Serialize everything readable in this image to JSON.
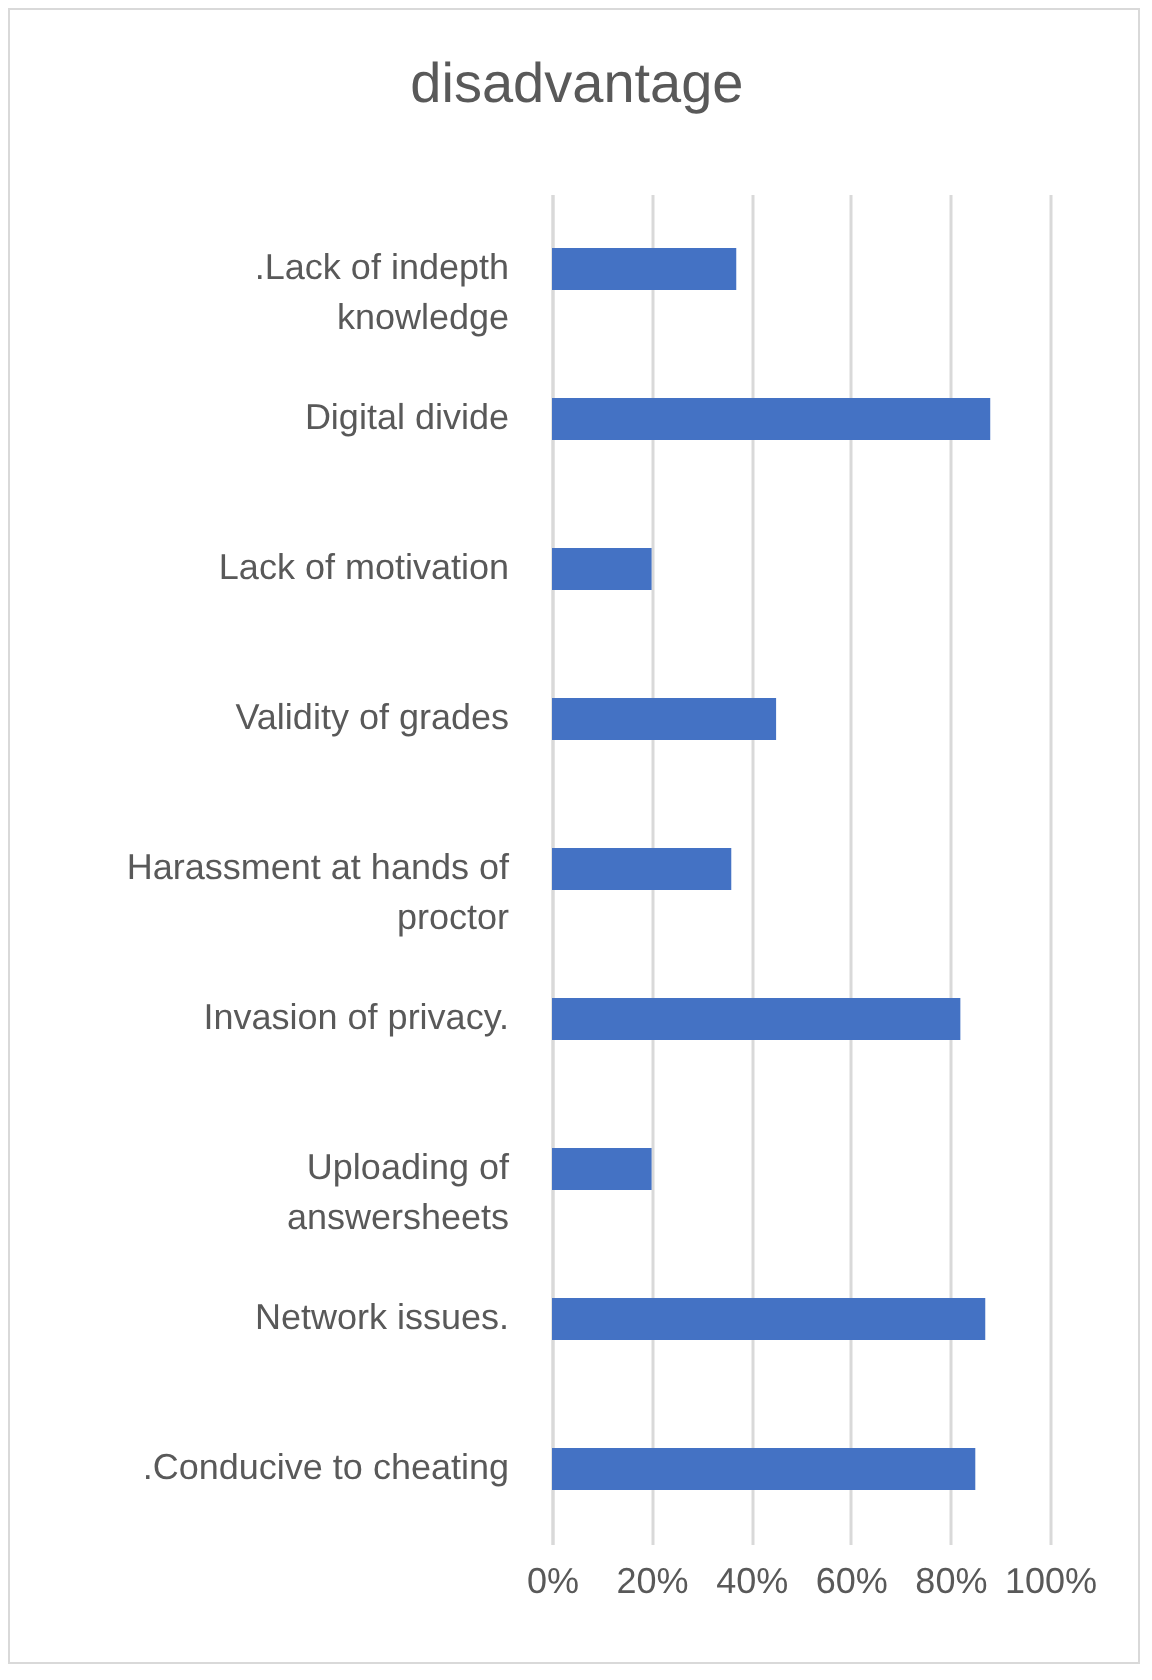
{
  "chart_data": {
    "type": "bar",
    "orientation": "horizontal",
    "title": "disadvantage",
    "categories": [
      ".Lack of indepth knowledge",
      "Digital divide",
      "Lack of motivation",
      "Validity of grades",
      "Harassment at hands of proctor",
      "Invasion of privacy.",
      "Uploading of answersheets",
      "Network issues.",
      ".Conducive to cheating"
    ],
    "values": [
      37,
      88,
      20,
      45,
      36,
      82,
      20,
      87,
      85
    ],
    "color": "#4472c4",
    "xlim": [
      0,
      100
    ],
    "xticks": [
      {
        "value": 0,
        "label": "0%"
      },
      {
        "value": 20,
        "label": "20%"
      },
      {
        "value": 40,
        "label": "40%"
      },
      {
        "value": 60,
        "label": "60%"
      },
      {
        "value": 80,
        "label": "80%"
      },
      {
        "value": 100,
        "label": "100%"
      }
    ],
    "grid": "x"
  }
}
